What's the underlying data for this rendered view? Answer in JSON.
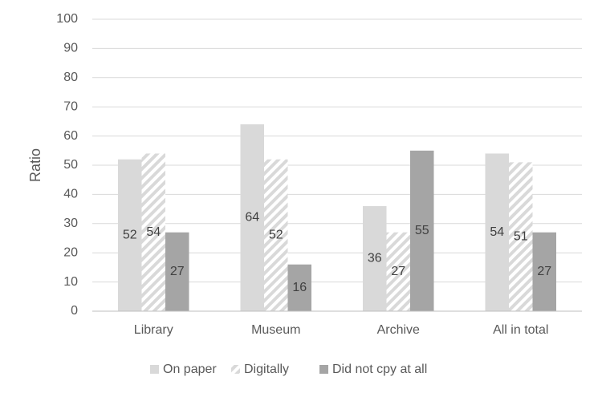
{
  "chart_data": {
    "type": "bar",
    "y_label": "Ratio",
    "categories": [
      "Library",
      "Museum",
      "Archive",
      "All in total"
    ],
    "series": [
      {
        "name": "On paper",
        "color": "#d9d9d9",
        "values": [
          52,
          64,
          36,
          54
        ]
      },
      {
        "name": "Digitally",
        "color": "#d9d9d9",
        "hatch": true,
        "values": [
          54,
          52,
          27,
          51
        ]
      },
      {
        "name": "Did not cpy at all",
        "color": "#a5a5a5",
        "values": [
          27,
          16,
          55,
          27
        ]
      }
    ],
    "ylim": [
      0,
      100
    ],
    "yticks": [
      0,
      10,
      20,
      30,
      40,
      50,
      60,
      70,
      80,
      90,
      100
    ],
    "grid": true,
    "legend": "bottom",
    "data_labels": true
  }
}
